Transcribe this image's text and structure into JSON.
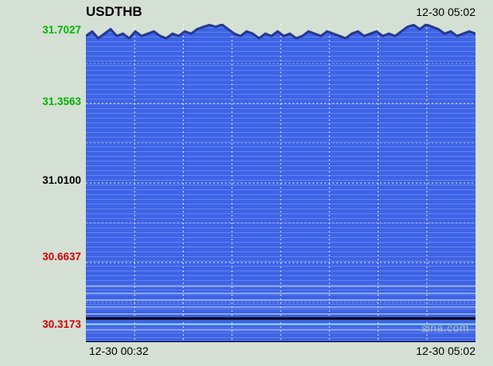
{
  "header": {
    "title": "USDTHB",
    "timestamp": "12-30 05:02"
  },
  "axis": {
    "y_labels": [
      {
        "text": "31.7027",
        "color": "#00B400"
      },
      {
        "text": "31.3563",
        "color": "#00B400"
      },
      {
        "text": "31.0100",
        "color": "#000000"
      },
      {
        "text": "30.6637",
        "color": "#D40000"
      },
      {
        "text": "30.3173",
        "color": "#D40000"
      }
    ],
    "x_labels": [
      "12-30 00:32",
      "12-30 05:02"
    ]
  },
  "watermark": "sina.com",
  "chart_data": {
    "type": "area",
    "title": "USDTHB",
    "x_range": [
      "12-30 00:32",
      "12-30 05:02"
    ],
    "ylim": [
      30.3173,
      31.7027
    ],
    "y_ticks": [
      31.7027,
      31.3563,
      31.01,
      30.6637,
      30.3173
    ],
    "grid": {
      "v_divisions": 8,
      "h_divisions": 8,
      "style": "dashed-white"
    },
    "legend": "none",
    "series": [
      {
        "name": "USDTHB",
        "values": [
          31.65,
          31.67,
          31.64,
          31.66,
          31.68,
          31.65,
          31.66,
          31.64,
          31.67,
          31.65,
          31.66,
          31.67,
          31.65,
          31.64,
          31.66,
          31.65,
          31.67,
          31.66,
          31.68,
          31.69,
          31.698,
          31.69,
          31.7,
          31.68,
          31.66,
          31.65,
          31.67,
          31.66,
          31.64,
          31.66,
          31.65,
          31.67,
          31.65,
          31.66,
          31.64,
          31.65,
          31.67,
          31.66,
          31.65,
          31.67,
          31.66,
          31.65,
          31.64,
          31.66,
          31.67,
          31.65,
          31.66,
          31.67,
          31.65,
          31.66,
          31.65,
          31.67,
          31.69,
          31.698,
          31.68,
          31.7,
          31.69,
          31.68,
          31.66,
          31.67,
          31.65,
          31.66,
          31.67,
          31.66
        ]
      }
    ],
    "overlays": [
      {
        "type": "hline",
        "value": 30.56,
        "color": "#C9DDF7",
        "width": 1
      },
      {
        "type": "hline",
        "value": 30.53,
        "color": "#C9DDF7",
        "width": 1
      },
      {
        "type": "hline",
        "value": 30.5,
        "color": "#C9DDF7",
        "width": 1
      },
      {
        "type": "hline",
        "value": 30.47,
        "color": "#C9DDF7",
        "width": 1
      },
      {
        "type": "hline",
        "value": 30.44,
        "color": "#C9DDF7",
        "width": 1
      },
      {
        "type": "hline",
        "value": 30.42,
        "color": "#000000",
        "width": 3
      },
      {
        "type": "hline",
        "value": 30.395,
        "color": "#8FD4F8",
        "width": 2
      },
      {
        "type": "hline",
        "value": 30.37,
        "color": "#C9DDF7",
        "width": 1
      }
    ],
    "colors": {
      "fill": "#3D63E6",
      "line": "#1C2D86",
      "grid": "#FFFFFF",
      "background": "#D4E0D4"
    }
  }
}
